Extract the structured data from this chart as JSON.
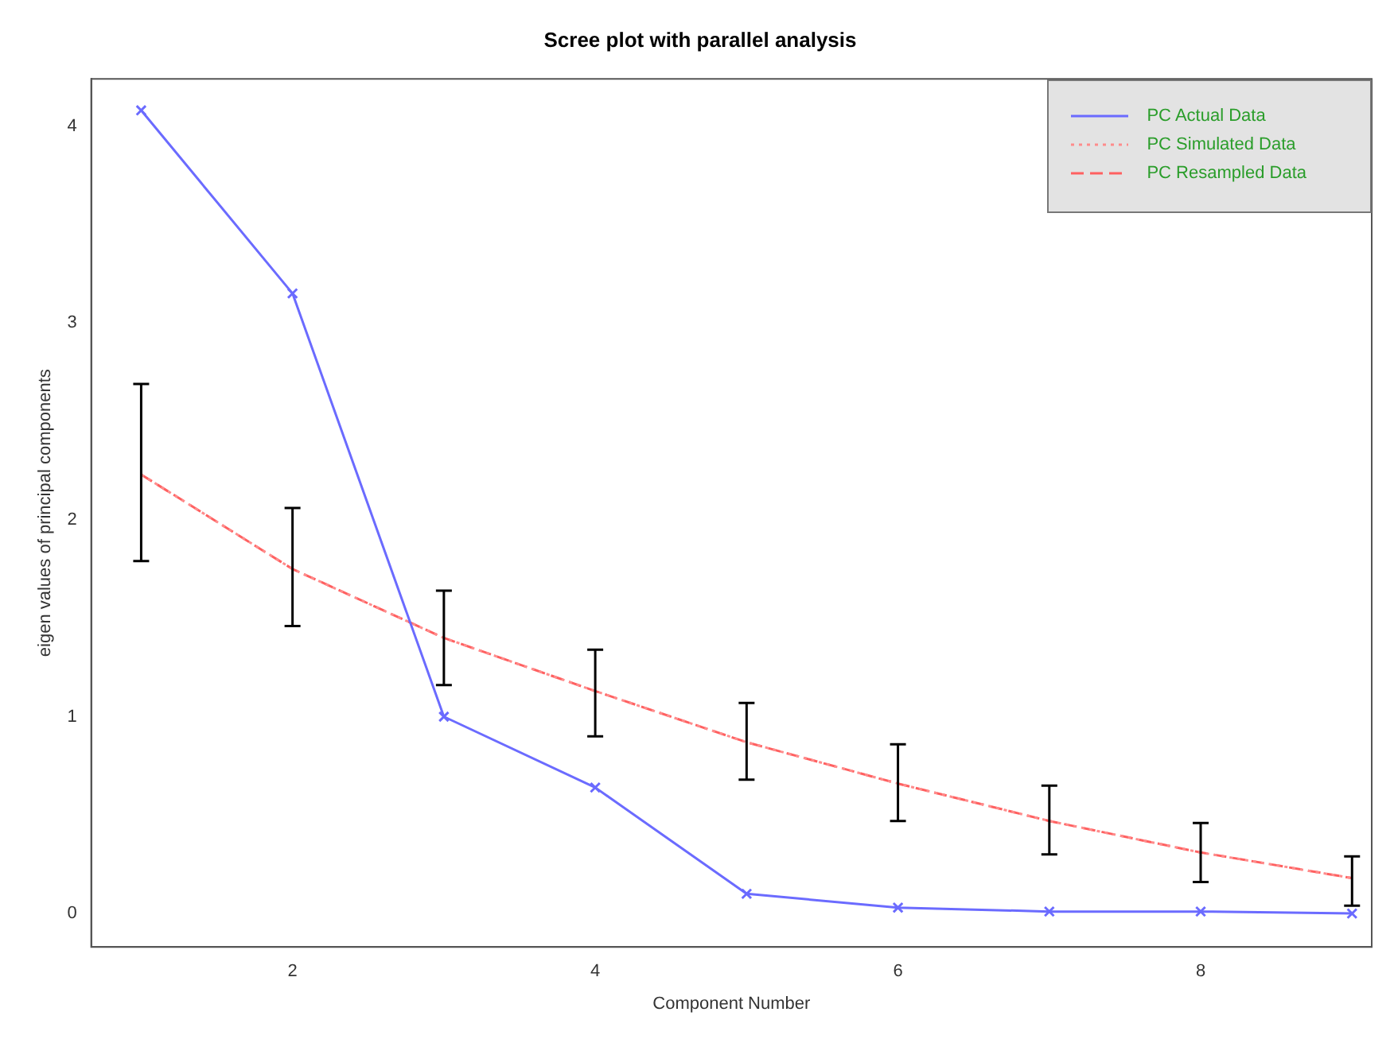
{
  "chart_data": {
    "type": "line",
    "title": "Scree plot with parallel analysis",
    "xlabel": "Component Number",
    "ylabel": "eigen values of principal components",
    "x": [
      1,
      2,
      3,
      4,
      5,
      6,
      7,
      8,
      9
    ],
    "series": [
      {
        "name": "PC  Actual Data",
        "color": "#6b6bff",
        "values": [
          4.08,
          3.15,
          1.0,
          0.64,
          0.1,
          0.03,
          0.01,
          0.01,
          0.0
        ],
        "marker": "cross",
        "line_style": "solid"
      },
      {
        "name": "PC  Simulated Data",
        "color": "#ff8c8c",
        "values": [
          2.23,
          1.75,
          1.4,
          1.13,
          0.87,
          0.66,
          0.47,
          0.31,
          0.18
        ],
        "marker": "none",
        "line_style": "dotted",
        "errors": [
          [
            1.79,
            2.69
          ],
          [
            1.46,
            2.06
          ],
          [
            1.16,
            1.64
          ],
          [
            0.9,
            1.34
          ],
          [
            0.68,
            1.07
          ],
          [
            0.47,
            0.86
          ],
          [
            0.3,
            0.65
          ],
          [
            0.16,
            0.46
          ],
          [
            0.04,
            0.29
          ]
        ]
      },
      {
        "name": "PC  Resampled Data",
        "color": "#ff6060",
        "values": [
          2.23,
          1.75,
          1.4,
          1.13,
          0.87,
          0.66,
          0.47,
          0.31,
          0.18
        ],
        "marker": "none",
        "line_style": "dashed"
      }
    ],
    "xlim": [
      0.67,
      9.13
    ],
    "ylim": [
      -0.17,
      4.24
    ],
    "xticks": [
      2,
      4,
      6,
      8
    ],
    "yticks": [
      0,
      1,
      2,
      3,
      4
    ],
    "grid": false,
    "legend": "top right"
  }
}
